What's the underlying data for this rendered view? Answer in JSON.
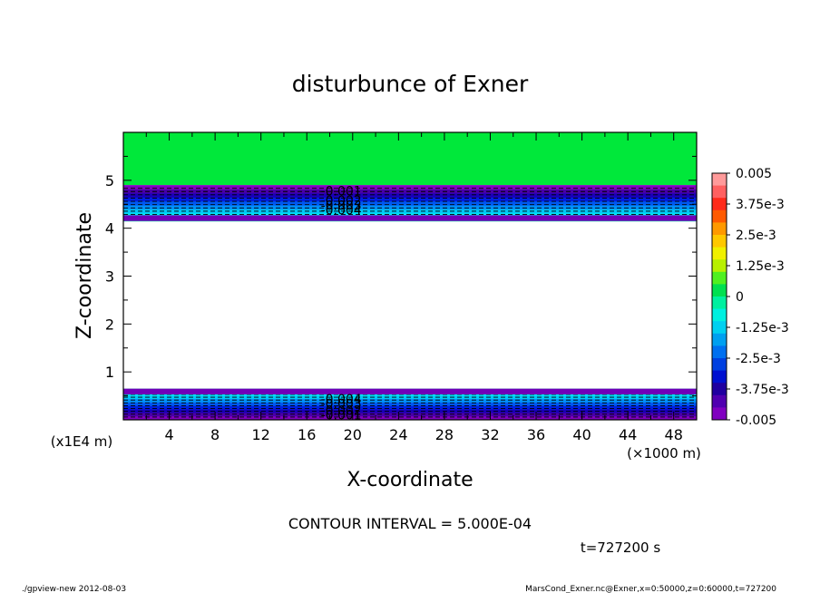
{
  "chart_data": {
    "type": "contour",
    "title": "disturbunce of Exner",
    "xlabel": "X-coordinate",
    "ylabel": "Z-coordinate",
    "x_unit": "(×1000 m)",
    "y_unit": "(x1E4 m)",
    "xlim": [
      0,
      50
    ],
    "ylim": [
      0,
      6
    ],
    "x_ticks": [
      "4",
      "8",
      "12",
      "16",
      "20",
      "24",
      "28",
      "32",
      "36",
      "40",
      "44",
      "48"
    ],
    "y_ticks": [
      "1",
      "2",
      "3",
      "4",
      "5"
    ],
    "contour_interval_text": "CONTOUR INTERVAL = 5.000E-04",
    "time_text": "t=727200 s",
    "colorbar": {
      "labels": [
        "0.005",
        "3.75e-3",
        "2.5e-3",
        "1.25e-3",
        "0",
        "-1.25e-3",
        "-2.5e-3",
        "-3.75e-3",
        "-0.005"
      ],
      "colors": [
        "#ff9a9a",
        "#ff6060",
        "#ff2a1a",
        "#ff5a00",
        "#ff9900",
        "#ffc800",
        "#f0f000",
        "#b8f000",
        "#50f020",
        "#00e050",
        "#00f0a0",
        "#00f0e0",
        "#00d0f0",
        "#00a0f0",
        "#0070f0",
        "#0040e0",
        "#0010d0",
        "#2000a0",
        "#5000b0",
        "#8000c0"
      ]
    },
    "bands": {
      "upper": {
        "zmin": 4.15,
        "zmax": 4.9,
        "description": "negative disturbance layer"
      },
      "lower": {
        "zmin": 0.0,
        "zmax": 0.65,
        "description": "negative disturbance layer"
      },
      "top_fill": {
        "zmin": 4.9,
        "zmax": 6.0,
        "value": "0"
      }
    },
    "contour_labels": [
      {
        "text": "-0.001",
        "x": 19,
        "z": 4.78
      },
      {
        "text": "-0.002",
        "x": 19,
        "z": 4.58
      },
      {
        "text": "-0.003",
        "x": 19,
        "z": 4.48
      },
      {
        "text": "-0.004",
        "x": 19,
        "z": 4.38
      },
      {
        "text": "-0.004",
        "x": 19,
        "z": 0.44
      },
      {
        "text": "-0.003",
        "x": 19,
        "z": 0.34
      },
      {
        "text": "-0.002",
        "x": 19,
        "z": 0.2
      },
      {
        "text": "-0.001",
        "x": 19,
        "z": 0.1
      }
    ]
  },
  "footer": {
    "left": "./gpview-new   2012-08-03",
    "right": "MarsCond_Exner.nc@Exner,x=0:50000,z=0:60000,t=727200"
  }
}
